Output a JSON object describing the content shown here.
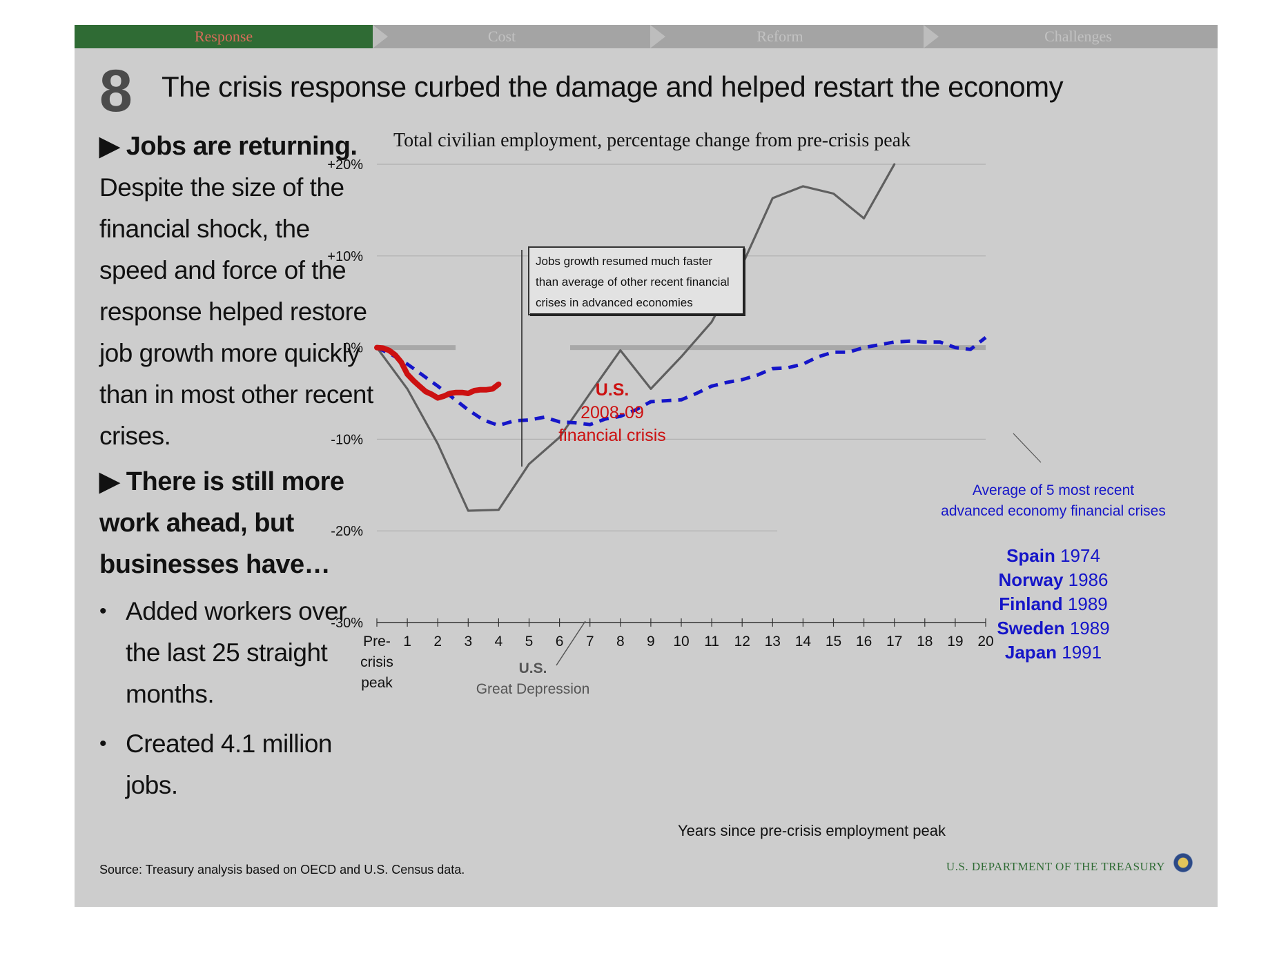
{
  "nav": {
    "tabs": [
      {
        "label": "Response",
        "active": true
      },
      {
        "label": "Cost",
        "active": false
      },
      {
        "label": "Reform",
        "active": false
      },
      {
        "label": "Challenges",
        "active": false
      }
    ]
  },
  "slide": {
    "number": "8",
    "title": "The crisis response curbed the damage and helped restart the economy"
  },
  "sidebar": {
    "heading1": "Jobs are returning.",
    "paragraph": "Despite the size of the financial shock, the speed and force of the response helped restore job growth more quickly than in most other recent crises.",
    "heading2": "There is still more work ahead, but businesses have…",
    "bullets": [
      "Added workers over the last 25 straight months.",
      "Created 4.1 million jobs."
    ]
  },
  "chart_data": {
    "type": "line",
    "title": "Total civilian employment, percentage change from pre-crisis peak",
    "xlabel": "Years since pre-crisis employment peak",
    "ylabel": "",
    "x_tick_labels": [
      "Pre-crisis peak",
      "1",
      "2",
      "3",
      "4",
      "5",
      "6",
      "7",
      "8",
      "9",
      "10",
      "11",
      "12",
      "13",
      "14",
      "15",
      "16",
      "17",
      "18",
      "19",
      "20"
    ],
    "y_ticks": [
      20,
      10,
      0,
      -10,
      -20,
      -30
    ],
    "y_tick_labels": [
      "+20%",
      "+10%",
      "0%",
      "-10%",
      "-20%",
      "-30%"
    ],
    "xlim": [
      0,
      20
    ],
    "ylim": [
      -30,
      20
    ],
    "grid": true,
    "series": [
      {
        "key": "depression",
        "color": "#5f5f5f",
        "style": "solid",
        "x": [
          0,
          1,
          2,
          3,
          4,
          5,
          6,
          7,
          8,
          9,
          10,
          11,
          12,
          13,
          14,
          15,
          16,
          17
        ],
        "y": [
          0,
          -4.5,
          -10.5,
          -17.8,
          -17.7,
          -12.7,
          -9.8,
          -5.0,
          -0.3,
          -4.5,
          -1.0,
          2.8,
          9.0,
          16.3,
          17.6,
          16.8,
          14.1,
          20.0
        ]
      },
      {
        "key": "average",
        "color": "#1515c8",
        "style": "dashed",
        "x": [
          0,
          0.5,
          1,
          1.5,
          2,
          2.5,
          3,
          3.5,
          4,
          4.5,
          5,
          5.5,
          6,
          6.5,
          7,
          7.5,
          8,
          8.5,
          9,
          9.5,
          10,
          10.5,
          11,
          11.5,
          12,
          12.5,
          13,
          13.5,
          14,
          14.5,
          15,
          15.5,
          16,
          16.5,
          17,
          17.5,
          18,
          18.5,
          19,
          19.5,
          20
        ],
        "y": [
          0,
          -0.8,
          -1.8,
          -3.0,
          -4.2,
          -5.5,
          -6.8,
          -7.9,
          -8.5,
          -8.0,
          -7.9,
          -7.6,
          -8.1,
          -8.2,
          -8.4,
          -7.8,
          -7.5,
          -6.8,
          -5.9,
          -5.8,
          -5.7,
          -5.0,
          -4.2,
          -3.8,
          -3.5,
          -3.0,
          -2.3,
          -2.2,
          -1.8,
          -1.0,
          -0.5,
          -0.5,
          0.0,
          0.3,
          0.6,
          0.7,
          0.6,
          0.6,
          0.0,
          -0.2,
          1.1
        ]
      },
      {
        "key": "us_2008",
        "color": "#cc1111",
        "style": "solid",
        "x": [
          0,
          0.2,
          0.4,
          0.6,
          0.8,
          1.0,
          1.2,
          1.4,
          1.6,
          1.8,
          2.0,
          2.2,
          2.4,
          2.6,
          2.8,
          3.0,
          3.2,
          3.4,
          3.6,
          3.8,
          4.0
        ],
        "y": [
          0,
          -0.05,
          -0.3,
          -0.8,
          -1.6,
          -2.9,
          -3.6,
          -4.2,
          -4.8,
          -5.1,
          -5.5,
          -5.3,
          -5.0,
          -4.9,
          -4.9,
          -5.0,
          -4.7,
          -4.6,
          -4.6,
          -4.5,
          -4.0
        ]
      }
    ],
    "annotations": {
      "us_label_line1": "U.S.",
      "us_label_line2": "2008-09",
      "us_label_line3": "financial crisis",
      "callout_line1": "Jobs growth resumed much faster",
      "callout_line2": "than average of other recent financial",
      "callout_line3": "crises in advanced economies",
      "depression_line1": "U.S.",
      "depression_line2": "Great Depression",
      "average_line1": "Average of 5 most recent",
      "average_line2": "advanced economy financial crises",
      "countries": [
        {
          "name": "Spain",
          "year": "1974"
        },
        {
          "name": "Norway",
          "year": "1986"
        },
        {
          "name": "Finland",
          "year": "1989"
        },
        {
          "name": "Sweden",
          "year": "1989"
        },
        {
          "name": "Japan",
          "year": "1991"
        }
      ]
    }
  },
  "footer": {
    "source": "Source: Treasury analysis based on OECD and U.S. Census data.",
    "agency": "U.S. DEPARTMENT OF THE TREASURY"
  }
}
